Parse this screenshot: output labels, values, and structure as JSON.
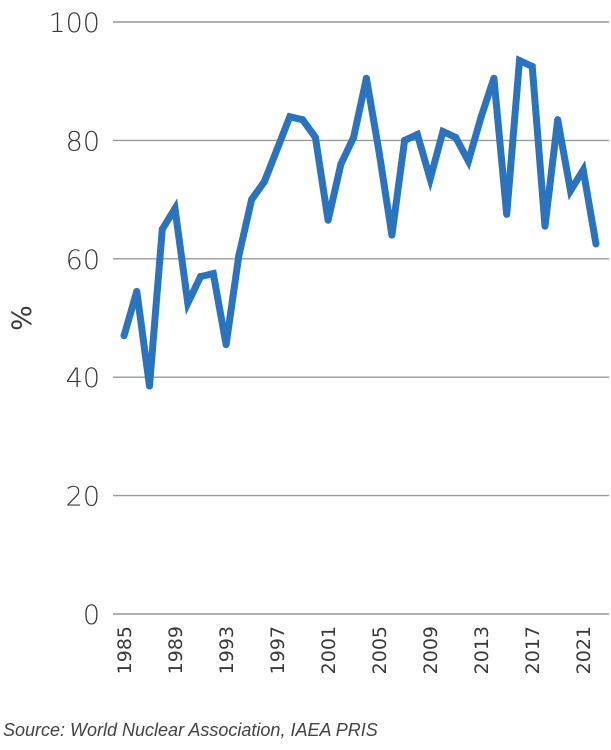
{
  "source_note": "Source: World Nuclear Association, IAEA PRIS",
  "chart_data": {
    "type": "line",
    "title": "",
    "xlabel": "",
    "ylabel": "%",
    "ylim": [
      0,
      100
    ],
    "yticks": [
      0,
      20,
      40,
      60,
      80,
      100
    ],
    "xticks": [
      1985,
      1989,
      1993,
      1997,
      2001,
      2005,
      2009,
      2013,
      2017,
      2021
    ],
    "grid": "horizontal",
    "line_color": "#2a74bf",
    "x": [
      1985,
      1986,
      1987,
      1988,
      1989,
      1990,
      1991,
      1992,
      1993,
      1994,
      1995,
      1996,
      1997,
      1998,
      1999,
      2000,
      2001,
      2002,
      2003,
      2004,
      2005,
      2006,
      2007,
      2008,
      2009,
      2010,
      2011,
      2012,
      2013,
      2014,
      2015,
      2016,
      2017,
      2018,
      2019,
      2020,
      2021,
      2022
    ],
    "series": [
      {
        "values": [
          47,
          54.5,
          38.5,
          65,
          68.5,
          52.5,
          57,
          57.5,
          45.5,
          60.5,
          70,
          73,
          78.5,
          84,
          83.5,
          80.5,
          66.5,
          76,
          80.5,
          90.5,
          78,
          64,
          80,
          81,
          73.5,
          81.5,
          80.5,
          76.5,
          84,
          90.5,
          67.5,
          93.5,
          92.5,
          65.5,
          83.5,
          71.5,
          75,
          62.5
        ]
      }
    ]
  }
}
